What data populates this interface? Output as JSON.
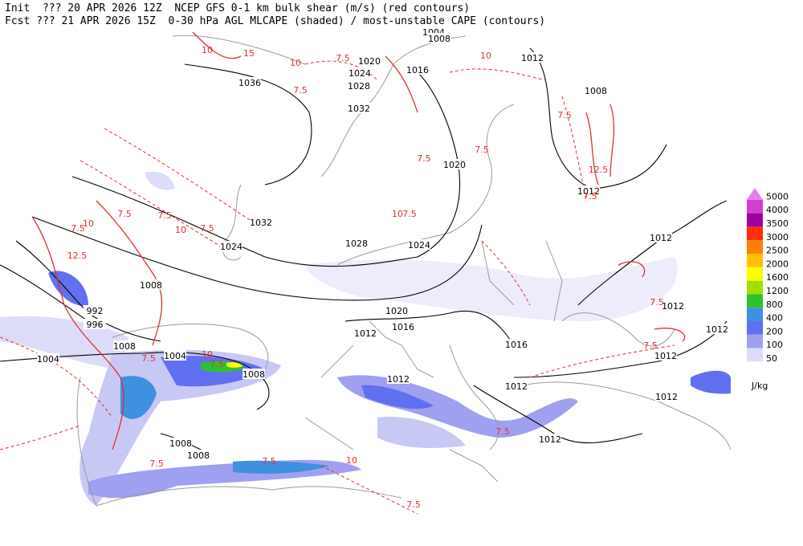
{
  "header": {
    "line1": "Init  ??? 20 APR 2026 12Z  NCEP GFS 0-1 km bulk shear (m/s) (red contours)",
    "line2": "Fcst ??? 21 APR 2026 15Z  0-30 hPa AGL MLCAPE (shaded) / most-unstable CAPE (contours)"
  },
  "colorbar": {
    "unit": "J/kg",
    "levels": [
      {
        "label": 5000,
        "color": "#e080f0"
      },
      {
        "label": 4000,
        "color": "#d040d0"
      },
      {
        "label": 3500,
        "color": "#a000a0"
      },
      {
        "label": 3000,
        "color": "#ff3000"
      },
      {
        "label": 2500,
        "color": "#ff8000"
      },
      {
        "label": 2000,
        "color": "#ffc000"
      },
      {
        "label": 1600,
        "color": "#ffff00"
      },
      {
        "label": 1200,
        "color": "#a0e000"
      },
      {
        "label": 800,
        "color": "#30c030"
      },
      {
        "label": 400,
        "color": "#4090e0"
      },
      {
        "label": 200,
        "color": "#6070f0"
      },
      {
        "label": 100,
        "color": "#a0a0f0"
      },
      {
        "label": 50,
        "color": "#dcdcf8"
      }
    ]
  },
  "isobar_labels": [
    1004,
    1008,
    1020,
    1016,
    1024,
    1012,
    1028,
    1036,
    1032,
    1008,
    1020,
    1012,
    1032,
    1028,
    1024,
    1024,
    1012,
    1008,
    992,
    996,
    1020,
    1016,
    1012,
    1012,
    1012,
    1016,
    1004,
    1008,
    1004,
    1012,
    1008,
    1012,
    1012,
    1012,
    1008,
    1008,
    1012
  ],
  "shear_labels": [
    10,
    7.5,
    15,
    10,
    7.5,
    7.5,
    10,
    7.5,
    10,
    12.5,
    7.5,
    7.5,
    7.5,
    7.5,
    10,
    7.5,
    12.5,
    10,
    7.5,
    7.5,
    10,
    7.5,
    7.5,
    7.5,
    7.5,
    7.5,
    7.5,
    10,
    7.5,
    7.5
  ]
}
